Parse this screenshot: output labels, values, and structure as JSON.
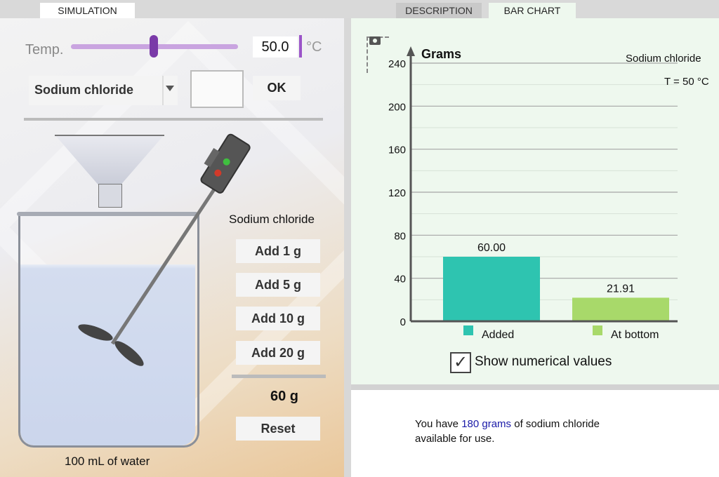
{
  "tabs": {
    "simulation": "SIMULATION",
    "description": "DESCRIPTION",
    "bar_chart": "BAR CHART"
  },
  "temperature": {
    "label": "Temp.",
    "value": "50.0",
    "unit": "°C",
    "slider_fraction": 0.5
  },
  "substance_select": {
    "selected": "Sodium chloride"
  },
  "ok_label": "OK",
  "solute_label": "Sodium chloride",
  "add_buttons": [
    "Add 1 g",
    "Add 5 g",
    "Add 10 g",
    "Add 20 g"
  ],
  "total_added": "60 g",
  "reset_label": "Reset",
  "water_label": "100 mL of water",
  "chart_data": {
    "type": "bar",
    "title": "Grams",
    "subtitle": "Sodium chloride",
    "temperature_note": "T = 50 °C",
    "categories": [
      "Added",
      "At bottom"
    ],
    "values": [
      60.0,
      21.91
    ],
    "value_labels": [
      "60.00",
      "21.91"
    ],
    "colors": [
      "#2ec4b0",
      "#a8d96a"
    ],
    "ylim": [
      0,
      240
    ],
    "yticks": [
      0,
      40,
      80,
      120,
      160,
      200,
      240
    ],
    "grid": true,
    "legend": "bottom"
  },
  "show_values": {
    "label": "Show numerical values",
    "checked": true
  },
  "info": {
    "prefix": "You have ",
    "amount": "180 grams",
    "suffix_line1": " of sodium chloride",
    "line2": "available for use."
  }
}
